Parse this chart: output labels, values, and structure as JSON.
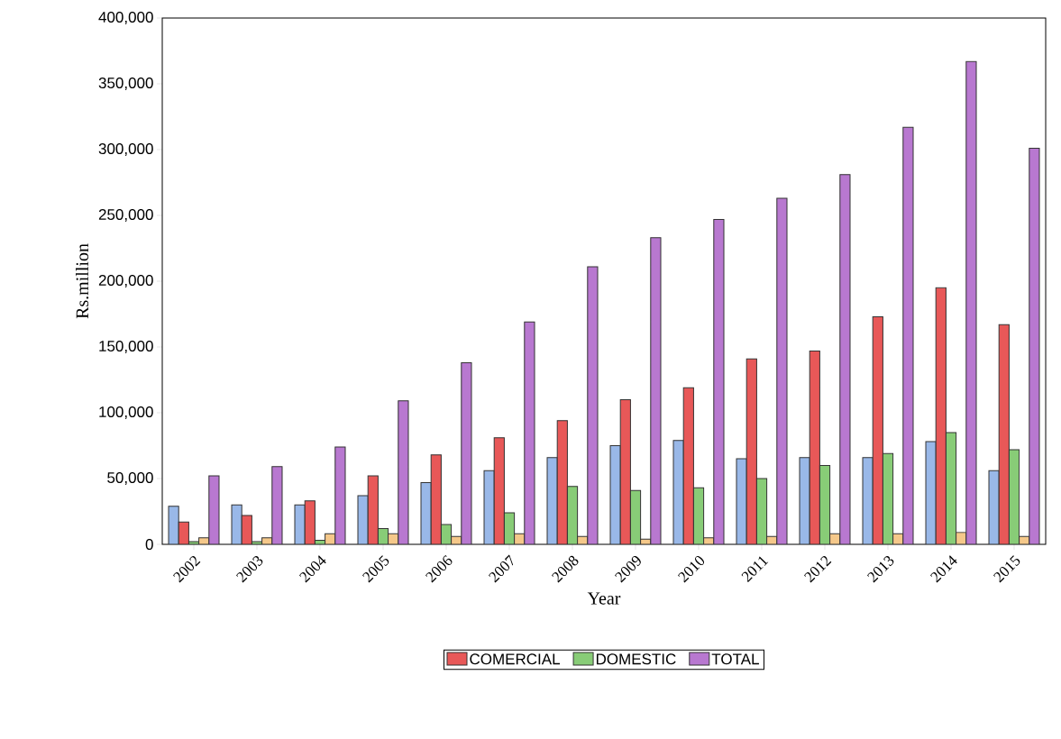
{
  "chart_data": {
    "type": "bar",
    "xlabel": "Year",
    "ylabel": "Rs.million",
    "categories": [
      "2002",
      "2003",
      "2004",
      "2005",
      "2006",
      "2007",
      "2008",
      "2009",
      "2010",
      "2011",
      "2012",
      "2013",
      "2014",
      "2015"
    ],
    "series": [
      {
        "color": "#99b8e8",
        "values": [
          29000,
          30000,
          30000,
          37000,
          47000,
          56000,
          66000,
          75000,
          79000,
          65000,
          66000,
          66000,
          78000,
          56000
        ]
      },
      {
        "name": "COMERCIAL",
        "color": "#e85858",
        "values": [
          17000,
          22000,
          33000,
          52000,
          68000,
          81000,
          94000,
          110000,
          119000,
          141000,
          147000,
          173000,
          195000,
          167000
        ]
      },
      {
        "name": "DOMESTIC",
        "color": "#88cc77",
        "values": [
          2000,
          2000,
          3000,
          12000,
          15000,
          24000,
          44000,
          41000,
          43000,
          50000,
          60000,
          69000,
          85000,
          72000
        ]
      },
      {
        "color": "#f5c88a",
        "values": [
          5000,
          5000,
          8000,
          8000,
          6000,
          8000,
          6000,
          4000,
          5000,
          6000,
          8000,
          8000,
          9000,
          6000
        ]
      },
      {
        "name": "TOTAL",
        "color": "#b878d0",
        "values": [
          52000,
          59000,
          74000,
          109000,
          138000,
          169000,
          211000,
          233000,
          247000,
          263000,
          281000,
          317000,
          367000,
          301000
        ]
      }
    ],
    "ylim": [
      0,
      400000
    ],
    "yticks": [
      {
        "value": 0,
        "label": "0"
      },
      {
        "value": 50000,
        "label": "50,000"
      },
      {
        "value": 100000,
        "label": "100,000"
      },
      {
        "value": 150000,
        "label": "150,000"
      },
      {
        "value": 200000,
        "label": "200,000"
      },
      {
        "value": 250000,
        "label": "250,000"
      },
      {
        "value": 300000,
        "label": "300,000"
      },
      {
        "value": 350000,
        "label": "350,000"
      },
      {
        "value": 400000,
        "label": "400,000"
      }
    ],
    "legend": "bottom"
  }
}
